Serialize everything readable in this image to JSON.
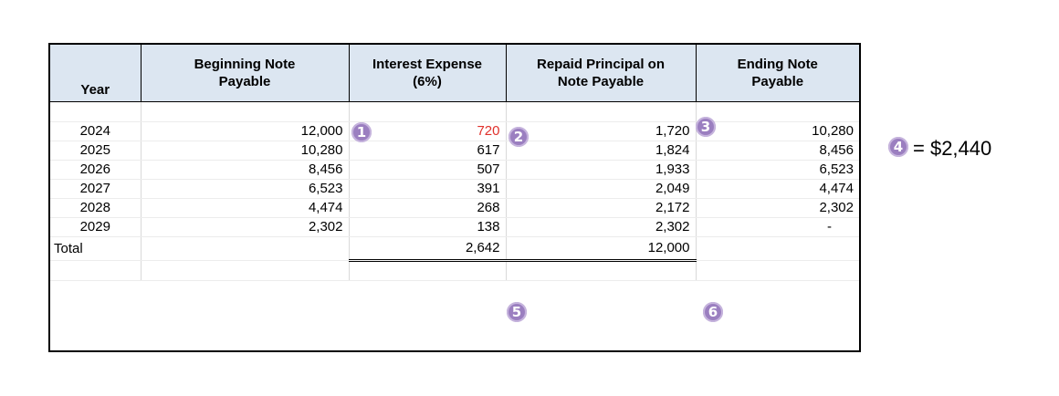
{
  "table": {
    "headers": [
      {
        "line1": "",
        "line2": "Year"
      },
      {
        "line1": "Beginning Note",
        "line2": "Payable"
      },
      {
        "line1": "Interest Expense",
        "line2": "(6%)"
      },
      {
        "line1": "Repaid Principal on",
        "line2": "Note Payable"
      },
      {
        "line1": "Ending Note",
        "line2": "Payable"
      }
    ],
    "rows": [
      {
        "year": "2024",
        "begin": "12,000",
        "interest": "720",
        "repaid": "1,720",
        "end": "10,280"
      },
      {
        "year": "2025",
        "begin": "10,280",
        "interest": "617",
        "repaid": "1,824",
        "end": "8,456"
      },
      {
        "year": "2026",
        "begin": "8,456",
        "interest": "507",
        "repaid": "1,933",
        "end": "6,523"
      },
      {
        "year": "2027",
        "begin": "6,523",
        "interest": "391",
        "repaid": "2,049",
        "end": "4,474"
      },
      {
        "year": "2028",
        "begin": "4,474",
        "interest": "268",
        "repaid": "2,172",
        "end": "2,302"
      },
      {
        "year": "2029",
        "begin": "2,302",
        "interest": "138",
        "repaid": "2,302",
        "end": "-"
      }
    ],
    "total": {
      "label": "Total",
      "interest": "2,642",
      "repaid": "12,000"
    }
  },
  "badges": {
    "b1": "1",
    "b2": "2",
    "b3": "3",
    "b4": "4",
    "b5": "5",
    "b6": "6"
  },
  "note": {
    "equation": "= $2,440"
  },
  "colors": {
    "header_bg": "#dce6f1",
    "badge": "#9b7fc0",
    "highlight_text": "#e0302b"
  }
}
